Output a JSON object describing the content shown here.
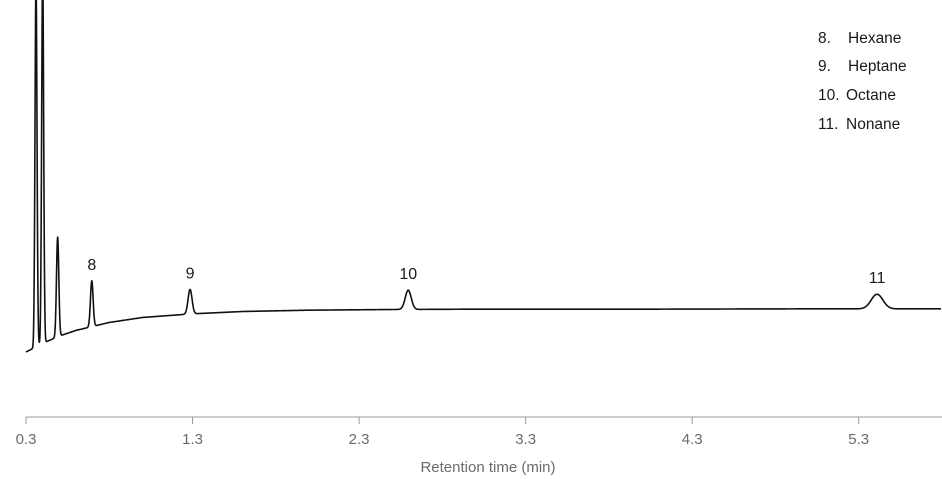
{
  "chart_data": {
    "type": "line",
    "title": "",
    "xlabel": "Retention time (min)",
    "ylabel": "",
    "xlim": [
      0.3,
      5.8
    ],
    "ylim": [
      0,
      100
    ],
    "x_ticks": [
      "0.3",
      "1.3",
      "2.3",
      "3.3",
      "4.3",
      "5.3"
    ],
    "y_axis_shown": false,
    "grid": false,
    "legend_position": "top-right",
    "line_color": "#111111",
    "axis_color": "#9a9a9a",
    "baseline": [
      [
        0.3,
        0.0
      ],
      [
        0.4,
        2.6
      ],
      [
        0.5,
        4.8
      ],
      [
        0.6,
        6.5
      ],
      [
        0.8,
        8.9
      ],
      [
        1.0,
        10.4
      ],
      [
        1.3,
        11.5
      ],
      [
        1.6,
        12.2
      ],
      [
        2.0,
        12.6
      ],
      [
        2.5,
        12.8
      ],
      [
        3.0,
        12.9
      ],
      [
        4.0,
        12.9
      ],
      [
        5.0,
        13.0
      ],
      [
        5.8,
        13.0
      ]
    ],
    "peaks": [
      {
        "label": "",
        "rt": 0.36,
        "height": 110,
        "width": 0.006
      },
      {
        "label": "",
        "rt": 0.4,
        "height": 112,
        "width": 0.006
      },
      {
        "label": "",
        "rt": 0.49,
        "height": 30,
        "width": 0.007
      },
      {
        "label": "8",
        "rt": 0.695,
        "height": 13.8,
        "width": 0.008
      },
      {
        "label": "9",
        "rt": 1.285,
        "height": 7.4,
        "width": 0.012
      },
      {
        "label": "10",
        "rt": 2.595,
        "height": 5.8,
        "width": 0.018
      },
      {
        "label": "11",
        "rt": 5.41,
        "height": 4.4,
        "width": 0.035
      }
    ],
    "legend": [
      "Hexane",
      "Heptane",
      "Octane",
      "Nonane"
    ],
    "legend_numbers": [
      "8.",
      "9.",
      "10.",
      "11."
    ]
  }
}
